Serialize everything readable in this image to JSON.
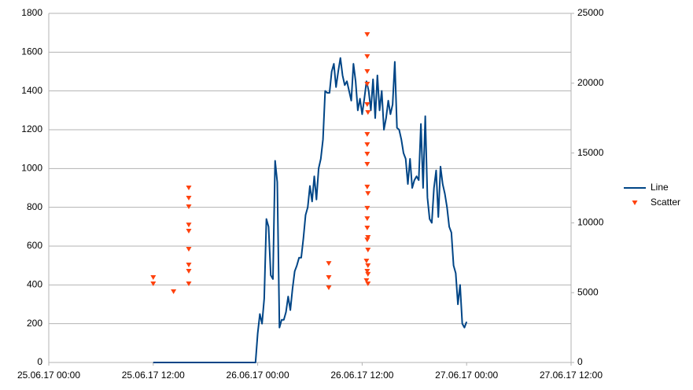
{
  "chart_data": {
    "type": "line",
    "xlim": [
      "25.06.17 00:00",
      "27.06.17 12:00"
    ],
    "xticks": [
      "25.06.17 00:00",
      "25.06.17 12:00",
      "26.06.17 00:00",
      "26.06.17 12:00",
      "27.06.17 00:00",
      "27.06.17 12:00"
    ],
    "ylim": [
      0,
      1800
    ],
    "yticks": [
      0,
      200,
      400,
      600,
      800,
      1000,
      1200,
      1400,
      1600,
      1800
    ],
    "y2lim": [
      0,
      25000
    ],
    "y2ticks": [
      0,
      5000,
      10000,
      15000,
      20000,
      25000
    ],
    "grid": true,
    "legend": "right",
    "series": [
      {
        "name": "Line",
        "type": "line",
        "color": "#004586",
        "x": [
          "25.06.17 12:00",
          "25.06.17 23:45",
          "26.06.17 00:00",
          "26.06.17 00:15",
          "26.06.17 00:30",
          "26.06.17 00:45",
          "26.06.17 01:00",
          "26.06.17 01:15",
          "26.06.17 01:30",
          "26.06.17 01:45",
          "26.06.17 02:00",
          "26.06.17 02:15",
          "26.06.17 02:30",
          "26.06.17 02:45",
          "26.06.17 03:00",
          "26.06.17 03:15",
          "26.06.17 03:30",
          "26.06.17 03:45",
          "26.06.17 04:00",
          "26.06.17 04:15",
          "26.06.17 04:30",
          "26.06.17 04:45",
          "26.06.17 05:00",
          "26.06.17 05:15",
          "26.06.17 05:30",
          "26.06.17 05:45",
          "26.06.17 06:00",
          "26.06.17 06:15",
          "26.06.17 06:30",
          "26.06.17 06:45",
          "26.06.17 07:00",
          "26.06.17 07:15",
          "26.06.17 07:30",
          "26.06.17 07:45",
          "26.06.17 08:00",
          "26.06.17 08:15",
          "26.06.17 08:30",
          "26.06.17 08:45",
          "26.06.17 09:00",
          "26.06.17 09:15",
          "26.06.17 09:30",
          "26.06.17 09:45",
          "26.06.17 10:00",
          "26.06.17 10:15",
          "26.06.17 10:30",
          "26.06.17 10:45",
          "26.06.17 11:00",
          "26.06.17 11:15",
          "26.06.17 11:30",
          "26.06.17 11:45",
          "26.06.17 12:00",
          "26.06.17 12:15",
          "26.06.17 12:30",
          "26.06.17 12:45",
          "26.06.17 13:00",
          "26.06.17 13:15",
          "26.06.17 13:30",
          "26.06.17 13:45",
          "26.06.17 14:00",
          "26.06.17 14:15",
          "26.06.17 14:30",
          "26.06.17 14:45",
          "26.06.17 15:00",
          "26.06.17 15:15",
          "26.06.17 15:30",
          "26.06.17 15:45",
          "26.06.17 16:00",
          "26.06.17 16:15",
          "26.06.17 16:30",
          "26.06.17 16:45",
          "26.06.17 17:00",
          "26.06.17 17:15",
          "26.06.17 17:30",
          "26.06.17 17:45",
          "26.06.17 18:00",
          "26.06.17 18:15",
          "26.06.17 18:30",
          "26.06.17 18:45",
          "26.06.17 19:00",
          "26.06.17 19:15",
          "26.06.17 19:30",
          "26.06.17 19:45",
          "26.06.17 20:00",
          "26.06.17 20:15",
          "26.06.17 20:30",
          "26.06.17 20:45",
          "26.06.17 21:00",
          "26.06.17 21:15",
          "26.06.17 21:30",
          "26.06.17 21:45",
          "26.06.17 22:00",
          "26.06.17 22:15",
          "26.06.17 22:30",
          "26.06.17 22:45",
          "26.06.17 23:00",
          "26.06.17 23:15",
          "26.06.17 23:30",
          "26.06.17 23:45",
          "27.06.17 00:00"
        ],
        "values": [
          0,
          0,
          150,
          250,
          200,
          330,
          740,
          700,
          450,
          430,
          1040,
          930,
          180,
          220,
          220,
          260,
          340,
          270,
          380,
          470,
          500,
          540,
          540,
          640,
          760,
          800,
          910,
          830,
          960,
          840,
          1000,
          1050,
          1150,
          1400,
          1390,
          1390,
          1500,
          1540,
          1420,
          1500,
          1570,
          1480,
          1430,
          1450,
          1400,
          1350,
          1540,
          1450,
          1300,
          1360,
          1280,
          1360,
          1450,
          1400,
          1300,
          1460,
          1260,
          1480,
          1300,
          1400,
          1200,
          1260,
          1350,
          1280,
          1330,
          1550,
          1210,
          1200,
          1150,
          1080,
          1050,
          920,
          1050,
          900,
          940,
          960,
          940,
          1230,
          900,
          1270,
          850,
          740,
          720,
          900,
          990,
          750,
          1010,
          920,
          870,
          800,
          700,
          670,
          500,
          460,
          300,
          400,
          200,
          180,
          210
        ]
      },
      {
        "name": "Scatter",
        "type": "scatter",
        "color": "#ff420e",
        "axis": "y2",
        "x": [
          "25.06.17 12:00",
          "25.06.17 12:00",
          "25.06.17 14:20",
          "25.06.17 16:05",
          "25.06.17 16:05",
          "25.06.17 16:05",
          "25.06.17 16:05",
          "25.06.17 16:05",
          "25.06.17 16:05",
          "25.06.17 16:05",
          "25.06.17 16:05",
          "25.06.17 16:05",
          "26.06.17 08:10",
          "26.06.17 08:10",
          "26.06.17 08:10",
          "26.06.17 12:35",
          "26.06.17 12:35",
          "26.06.17 12:35",
          "26.06.17 12:35",
          "26.06.17 12:35",
          "26.06.17 12:40",
          "26.06.17 12:35",
          "26.06.17 12:35",
          "26.06.17 12:35",
          "26.06.17 12:35",
          "26.06.17 12:35",
          "26.06.17 12:40",
          "26.06.17 12:35",
          "26.06.17 12:35",
          "26.06.17 12:35",
          "26.06.17 12:40",
          "26.06.17 12:35",
          "26.06.17 12:40",
          "26.06.17 12:30",
          "26.06.17 12:40",
          "26.06.17 12:35",
          "26.06.17 12:40",
          "26.06.17 12:30",
          "26.06.17 12:40"
        ],
        "values": [
          6080,
          5630,
          5070,
          12500,
          11770,
          11150,
          9850,
          9400,
          8110,
          6980,
          6530,
          5630,
          7090,
          6080,
          5350,
          23480,
          21900,
          20830,
          19930,
          18470,
          17900,
          16330,
          15600,
          14920,
          14190,
          12560,
          12100,
          11040,
          10300,
          9630,
          8950,
          8780,
          8050,
          7260,
          6930,
          6530,
          6310,
          5860,
          5630
        ]
      }
    ]
  }
}
